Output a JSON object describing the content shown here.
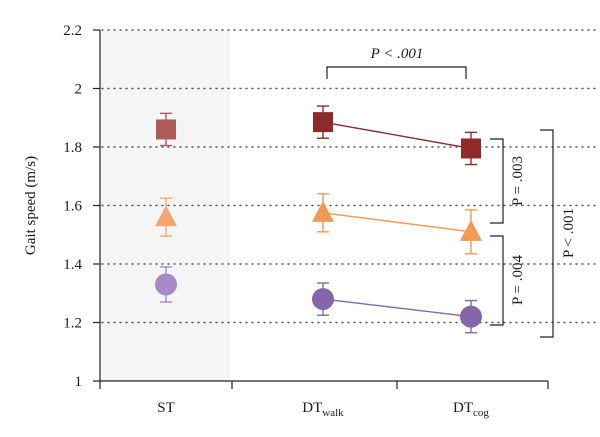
{
  "chart_data": {
    "type": "scatter",
    "title": "",
    "ylabel": "Gait speed (m/s)",
    "xlabel": "",
    "ylim": [
      1,
      2.2
    ],
    "yticks": [
      1,
      1.2,
      1.4,
      1.6,
      1.8,
      2,
      2.2
    ],
    "ytick_labels": [
      "1",
      "1.2",
      "1.4",
      "1.6",
      "1.8",
      "2",
      "2.2"
    ],
    "grid": "horizontal-dotted",
    "categories": [
      "ST",
      "DT_walk",
      "DT_cog"
    ],
    "category_labels": [
      {
        "main": "ST",
        "sub": ""
      },
      {
        "main": "DT",
        "sub": "walk"
      },
      {
        "main": "DT",
        "sub": "cog"
      }
    ],
    "shaded_category": "ST",
    "shade_color": "#f5f5f5",
    "series": [
      {
        "marker": "square",
        "values": [
          1.86,
          1.885,
          1.795
        ],
        "errors": [
          0.055,
          0.055,
          0.055
        ],
        "st_color": "#b05a5a",
        "dt_color": "#8e2a2a",
        "line_color": "#8e2a2a"
      },
      {
        "marker": "triangle",
        "values": [
          1.56,
          1.575,
          1.51
        ],
        "errors": [
          0.065,
          0.065,
          0.075
        ],
        "st_color": "#f0a870",
        "dt_color": "#ef9a55",
        "line_color": "#ef9a55"
      },
      {
        "marker": "circle",
        "values": [
          1.33,
          1.28,
          1.22
        ],
        "errors": [
          0.06,
          0.055,
          0.055
        ],
        "st_color": "#a88ac4",
        "dt_color": "#8566aa",
        "line_color": "#8566aa"
      }
    ],
    "annotations": {
      "top": "P < .001",
      "right_upper": "P = .003",
      "right_lower": "P = .004",
      "far_right": "P < .001"
    }
  }
}
